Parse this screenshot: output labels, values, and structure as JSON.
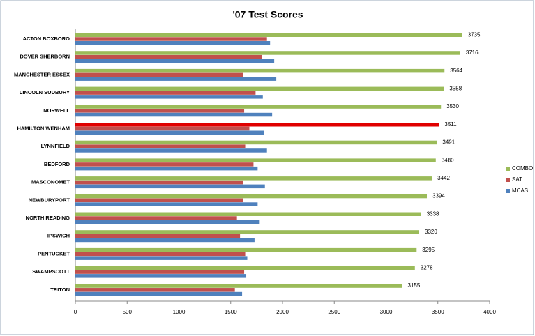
{
  "chart_data": {
    "type": "hbar",
    "title": "'07 Test Scores",
    "categories": [
      "ACTON BOXBORO",
      "DOVER SHERBORN",
      "MANCHESTER ESSEX",
      "LINCOLN SUDBURY",
      "NORWELL",
      "HAMILTON WENHAM",
      "LYNNFIELD",
      "BEDFORD",
      "MASCONOMET",
      "NEWBURYPORT",
      "NORTH READING",
      "IPSWICH",
      "PENTUCKET",
      "SWAMPSCOTT",
      "TRITON"
    ],
    "series": [
      {
        "name": "COMBO",
        "color": "#9bbb59",
        "colors": [
          "#9bbb59",
          "#9bbb59",
          "#9bbb59",
          "#9bbb59",
          "#9bbb59",
          "#e00000",
          "#9bbb59",
          "#9bbb59",
          "#9bbb59",
          "#9bbb59",
          "#9bbb59",
          "#9bbb59",
          "#9bbb59",
          "#9bbb59",
          "#9bbb59"
        ],
        "values": [
          3735,
          3716,
          3564,
          3558,
          3530,
          3511,
          3491,
          3480,
          3442,
          3394,
          3338,
          3320,
          3295,
          3278,
          3155
        ]
      },
      {
        "name": "SAT",
        "color": "#c0504d",
        "values": [
          1850,
          1800,
          1620,
          1740,
          1630,
          1680,
          1640,
          1720,
          1620,
          1620,
          1560,
          1590,
          1640,
          1630,
          1540
        ]
      },
      {
        "name": "MCAS",
        "color": "#4f81bd",
        "values": [
          1880,
          1920,
          1940,
          1810,
          1900,
          1820,
          1850,
          1760,
          1830,
          1760,
          1780,
          1730,
          1660,
          1650,
          1610
        ]
      }
    ],
    "xlim": [
      0,
      4000
    ],
    "xticks": [
      0,
      500,
      1000,
      1500,
      2000,
      2500,
      3000,
      3500,
      4000
    ],
    "legend": "right"
  }
}
